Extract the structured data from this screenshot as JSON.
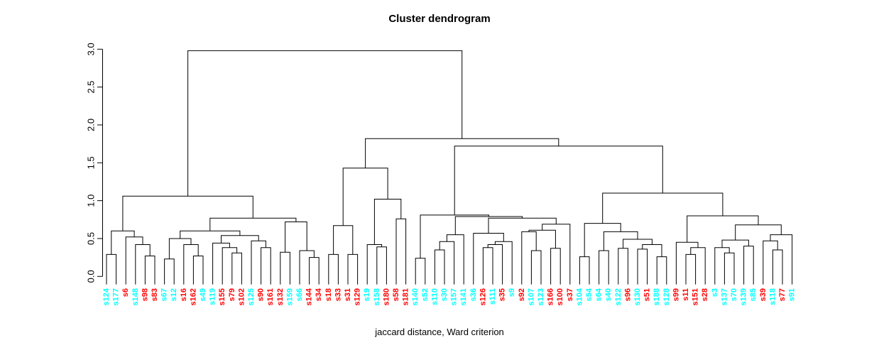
{
  "title": "Cluster dendrogram",
  "subtitle": "jaccard distance, Ward criterion",
  "colors": {
    "cluster_cyan": "#00FFFF",
    "cluster_red": "#FF0000",
    "line": "#000000",
    "background": "#FFFFFF"
  },
  "chart_data": {
    "type": "dendrogram",
    "title": "Cluster dendrogram",
    "xlabel": "jaccard distance, Ward criterion",
    "ylabel": "",
    "ylim": [
      0,
      3
    ],
    "yticks": [
      "0.0",
      "0.5",
      "1.0",
      "1.5",
      "2.0",
      "2.5",
      "3.0"
    ],
    "grid": false,
    "legend": "none",
    "n_leaves": 72,
    "leaf_order": [
      "s124",
      "s177",
      "s6",
      "s148",
      "s98",
      "s83",
      "s67",
      "s12",
      "s16",
      "s162",
      "s49",
      "s119",
      "s155",
      "s79",
      "s102",
      "s125",
      "s90",
      "s161",
      "s132",
      "s159",
      "s66",
      "s144",
      "s34",
      "s18",
      "s33",
      "s31",
      "s129",
      "s19",
      "s158",
      "s180",
      "s58",
      "s181",
      "s140",
      "s52",
      "s110",
      "s30",
      "s157",
      "s141",
      "s36",
      "s126",
      "s111",
      "s35",
      "s9",
      "s92",
      "s107",
      "s123",
      "s166",
      "s100",
      "s37",
      "s104",
      "s54",
      "s64",
      "s40",
      "s122",
      "s96",
      "s130",
      "s51",
      "s188",
      "s128",
      "s99",
      "s11",
      "s151",
      "s28",
      "s3",
      "s137",
      "s70",
      "s139",
      "s85",
      "s39",
      "s118",
      "s77",
      "s91"
    ],
    "label_colors": {
      "cyan": [
        "s124",
        "s177",
        "s148",
        "s67",
        "s12",
        "s49",
        "s119",
        "s125",
        "s159",
        "s66",
        "s19",
        "s158",
        "s140",
        "s52",
        "s110",
        "s30",
        "s157",
        "s141",
        "s36",
        "s111",
        "s9",
        "s107",
        "s123",
        "s104",
        "s54",
        "s64",
        "s40",
        "s122",
        "s130",
        "s188",
        "s128",
        "s3",
        "s137",
        "s70",
        "s139",
        "s85",
        "s118",
        "s91"
      ],
      "red": [
        "s6",
        "s98",
        "s83",
        "s16",
        "s162",
        "s155",
        "s79",
        "s102",
        "s90",
        "s161",
        "s132",
        "s144",
        "s34",
        "s18",
        "s33",
        "s31",
        "s129",
        "s180",
        "s58",
        "s181",
        "s126",
        "s35",
        "s92",
        "s166",
        "s100",
        "s37",
        "s96",
        "s51",
        "s99",
        "s11",
        "s151",
        "s28",
        "s39",
        "s77"
      ]
    },
    "tree": [
      2.98,
      [
        1.06,
        [
          0.6,
          [
            0.29,
            "s124",
            "s177"
          ],
          [
            0.52,
            "s6",
            [
              0.42,
              "s148",
              [
                0.27,
                "s98",
                "s83"
              ]
            ]
          ]
        ],
        [
          0.77,
          [
            0.6,
            [
              0.5,
              [
                0.23,
                "s67",
                "s12"
              ],
              [
                0.42,
                "s16",
                [
                  0.27,
                  "s162",
                  "s49"
                ]
              ]
            ],
            [
              0.54,
              [
                0.44,
                "s119",
                [
                  0.38,
                  "s155",
                  [
                    0.31,
                    "s79",
                    "s102"
                  ]
                ]
              ],
              [
                0.47,
                "s125",
                [
                  0.38,
                  "s90",
                  "s161"
                ]
              ]
            ]
          ],
          [
            0.72,
            [
              0.32,
              "s132",
              "s159"
            ],
            [
              0.34,
              "s66",
              [
                0.25,
                "s144",
                "s34"
              ]
            ]
          ]
        ]
      ],
      [
        1.82,
        [
          1.43,
          [
            0.67,
            [
              0.29,
              "s18",
              "s33"
            ],
            [
              0.29,
              "s31",
              "s129"
            ]
          ],
          [
            1.02,
            [
              0.42,
              "s19",
              [
                0.39,
                "s158",
                "s180"
              ]
            ],
            [
              0.76,
              "s58",
              "s181"
            ]
          ]
        ],
        [
          1.72,
          [
            0.81,
            [
              0.24,
              "s140",
              "s52"
            ],
            [
              0.79,
              [
                0.55,
                [
                  0.46,
                  [
                    0.35,
                    "s110",
                    "s30"
                  ],
                  "s157"
                ],
                "s141"
              ],
              [
                0.77,
                [
                  0.57,
                  "s36",
                  [
                    0.46,
                    [
                      0.42,
                      [
                        0.38,
                        "s126",
                        "s111"
                      ],
                      "s35"
                    ],
                    "s9"
                  ]
                ],
                [
                  0.69,
                  [
                    0.61,
                    [
                      0.59,
                      "s92",
                      [
                        0.34,
                        "s107",
                        "s123"
                      ]
                    ],
                    [
                      0.37,
                      "s166",
                      "s100"
                    ]
                  ],
                  "s37"
                ]
              ]
            ]
          ],
          [
            1.1,
            [
              0.7,
              [
                0.26,
                "s104",
                "s54"
              ],
              [
                0.59,
                [
                  0.34,
                  "s64",
                  "s40"
                ],
                [
                  0.49,
                  [
                    0.37,
                    "s122",
                    "s96"
                  ],
                  [
                    0.42,
                    [
                      0.36,
                      "s130",
                      "s51"
                    ],
                    [
                      0.26,
                      "s188",
                      "s128"
                    ]
                  ]
                ]
              ]
            ],
            [
              0.8,
              [
                0.45,
                "s99",
                [
                  0.38,
                  [
                    0.29,
                    "s11",
                    "s151"
                  ],
                  "s28"
                ]
              ],
              [
                0.68,
                [
                  0.48,
                  [
                    0.38,
                    "s3",
                    [
                      0.31,
                      "s137",
                      "s70"
                    ]
                  ],
                  [
                    0.4,
                    "s139",
                    "s85"
                  ]
                ],
                [
                  0.55,
                  [
                    0.47,
                    "s39",
                    [
                      0.35,
                      "s118",
                      "s77"
                    ]
                  ],
                  "s91"
                ]
              ]
            ]
          ]
        ]
      ]
    ]
  }
}
